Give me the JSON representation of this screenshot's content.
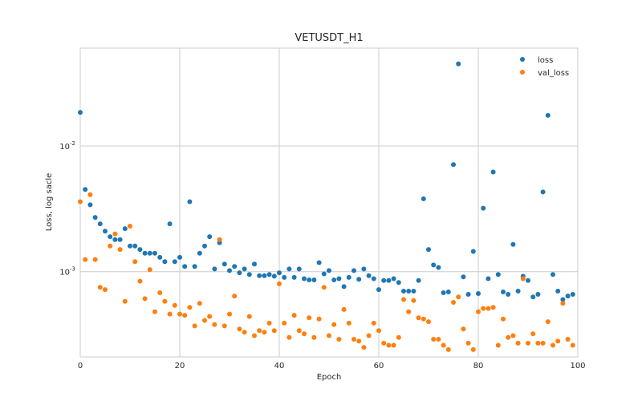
{
  "chart_data": {
    "type": "scatter",
    "title": "VETUSDT_H1",
    "xlabel": "Epoch",
    "ylabel": "Loss, log sacle",
    "xlim": [
      0,
      100
    ],
    "ylim": [
      0.00021,
      0.06
    ],
    "yscale": "log",
    "grid": true,
    "legend_position": "top-right",
    "x_ticks": [
      0,
      20,
      40,
      60,
      80,
      100
    ],
    "x_tick_labels": [
      "0",
      "20",
      "40",
      "60",
      "80",
      "100"
    ],
    "y_ticks": [
      0.001,
      0.01
    ],
    "y_tick_labels": [
      "10^-3",
      "10^-2"
    ],
    "series": [
      {
        "name": "loss",
        "color": "#1f77b4",
        "x": [
          0,
          1,
          2,
          3,
          4,
          5,
          6,
          7,
          8,
          9,
          10,
          11,
          12,
          13,
          14,
          15,
          16,
          17,
          18,
          19,
          20,
          21,
          22,
          23,
          24,
          25,
          26,
          27,
          28,
          29,
          30,
          31,
          32,
          33,
          34,
          35,
          36,
          37,
          38,
          39,
          40,
          41,
          42,
          43,
          44,
          45,
          46,
          47,
          48,
          49,
          50,
          51,
          52,
          53,
          54,
          55,
          56,
          57,
          58,
          59,
          60,
          61,
          62,
          63,
          64,
          65,
          66,
          67,
          68,
          69,
          70,
          71,
          72,
          73,
          74,
          75,
          76,
          77,
          78,
          79,
          80,
          81,
          82,
          83,
          84,
          85,
          86,
          87,
          88,
          89,
          90,
          91,
          92,
          93,
          94,
          95,
          96,
          97,
          98,
          99
        ],
        "y": [
          0.0185,
          0.0045,
          0.0034,
          0.0027,
          0.0024,
          0.0021,
          0.0019,
          0.0018,
          0.0018,
          0.0022,
          0.0016,
          0.0016,
          0.0015,
          0.0014,
          0.0014,
          0.0014,
          0.0013,
          0.0012,
          0.0024,
          0.0012,
          0.0013,
          0.0011,
          0.0036,
          0.0011,
          0.0014,
          0.0016,
          0.0019,
          0.00105,
          0.0017,
          0.00115,
          0.00102,
          0.0011,
          0.00098,
          0.00105,
          0.00095,
          0.00115,
          0.00093,
          0.00093,
          0.00095,
          0.00092,
          0.00098,
          0.0009,
          0.00105,
          0.0009,
          0.00105,
          0.00088,
          0.00086,
          0.00086,
          0.00118,
          0.00096,
          0.00102,
          0.00086,
          0.00088,
          0.00076,
          0.0009,
          0.00102,
          0.00087,
          0.00105,
          0.00093,
          0.00088,
          0.00072,
          0.00085,
          0.00085,
          0.00088,
          0.00082,
          0.0007,
          0.0007,
          0.0007,
          0.00085,
          0.0038,
          0.0015,
          0.00113,
          0.00108,
          0.00068,
          0.00069,
          0.0071,
          0.045,
          0.00091,
          0.00066,
          0.00145,
          0.00067,
          0.0032,
          0.00088,
          0.0062,
          0.00095,
          0.00069,
          0.00066,
          0.00165,
          0.0007,
          0.00092,
          0.00085,
          0.00063,
          0.00066,
          0.0043,
          0.0175,
          0.00095,
          0.0007,
          0.0006,
          0.00064,
          0.00066
        ]
      },
      {
        "name": "val_loss",
        "color": "#ff7f0e",
        "x": [
          0,
          1,
          2,
          3,
          4,
          5,
          6,
          7,
          8,
          9,
          10,
          11,
          12,
          13,
          14,
          15,
          16,
          17,
          18,
          19,
          20,
          21,
          22,
          23,
          24,
          25,
          26,
          27,
          28,
          29,
          30,
          31,
          32,
          33,
          34,
          35,
          36,
          37,
          38,
          39,
          40,
          41,
          42,
          43,
          44,
          45,
          46,
          47,
          48,
          49,
          50,
          51,
          52,
          53,
          54,
          55,
          56,
          57,
          58,
          59,
          60,
          61,
          62,
          63,
          64,
          65,
          66,
          67,
          68,
          69,
          70,
          71,
          72,
          73,
          74,
          75,
          76,
          77,
          78,
          79,
          80,
          81,
          82,
          83,
          84,
          85,
          86,
          87,
          88,
          89,
          90,
          91,
          92,
          93,
          94,
          95,
          96,
          97,
          98,
          99
        ],
        "y": [
          0.0036,
          0.00125,
          0.0041,
          0.00125,
          0.00075,
          0.00072,
          0.0016,
          0.002,
          0.0015,
          0.00058,
          0.0023,
          0.0012,
          0.00084,
          0.00061,
          0.00104,
          0.00048,
          0.00068,
          0.00058,
          0.00046,
          0.00054,
          0.00046,
          0.00045,
          0.00052,
          0.00037,
          0.00056,
          0.00041,
          0.00044,
          0.00038,
          0.0018,
          0.00037,
          0.00046,
          0.00064,
          0.00035,
          0.00033,
          0.00044,
          0.00031,
          0.00034,
          0.00033,
          0.00039,
          0.00034,
          0.0008,
          0.00039,
          0.0003,
          0.00045,
          0.00034,
          0.00032,
          0.00043,
          0.0003,
          0.00042,
          0.00075,
          0.00031,
          0.00038,
          0.00029,
          0.0005,
          0.00039,
          0.00029,
          0.00028,
          0.00025,
          0.00031,
          0.00039,
          0.00034,
          0.00027,
          0.00026,
          0.00026,
          0.0003,
          0.0006,
          0.00048,
          0.00059,
          0.00043,
          0.00042,
          0.0004,
          0.00029,
          0.00029,
          0.00026,
          0.00024,
          0.00057,
          0.00063,
          0.00035,
          0.00027,
          0.00024,
          0.00048,
          0.00051,
          0.00051,
          0.00052,
          0.00026,
          0.00042,
          0.0003,
          0.00031,
          0.00027,
          0.00088,
          0.00027,
          0.00032,
          0.00027,
          0.00027,
          0.0004,
          0.00026,
          0.00028,
          0.00056,
          0.00029,
          0.00026
        ]
      }
    ]
  }
}
